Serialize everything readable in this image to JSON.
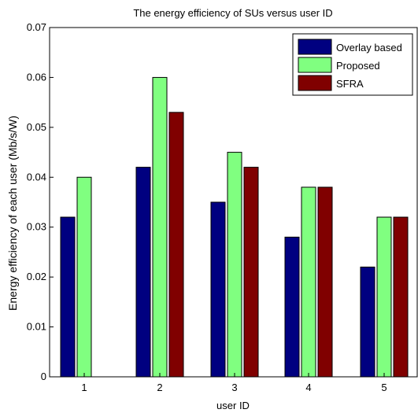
{
  "chart_data": {
    "type": "bar",
    "title": "The energy efficiency of SUs versus user ID",
    "xlabel": "user ID",
    "ylabel": "Energy efficiency of each user (Mb/s/W)",
    "categories": [
      "1",
      "2",
      "3",
      "4",
      "5"
    ],
    "ylim": [
      0,
      0.07
    ],
    "yticks": [
      "0",
      "0.01",
      "0.02",
      "0.03",
      "0.04",
      "0.05",
      "0.06",
      "0.07"
    ],
    "grid": false,
    "legend_position": "top-right",
    "series": [
      {
        "name": "Overlay based",
        "color": "#000080",
        "values": [
          0.032,
          0.042,
          0.035,
          0.028,
          0.022
        ]
      },
      {
        "name": "Proposed",
        "color": "#80ff80",
        "values": [
          0.04,
          0.06,
          0.045,
          0.038,
          0.032
        ]
      },
      {
        "name": "SFRA",
        "color": "#800000",
        "values": [
          0,
          0.053,
          0.042,
          0.038,
          0.032
        ]
      }
    ]
  }
}
